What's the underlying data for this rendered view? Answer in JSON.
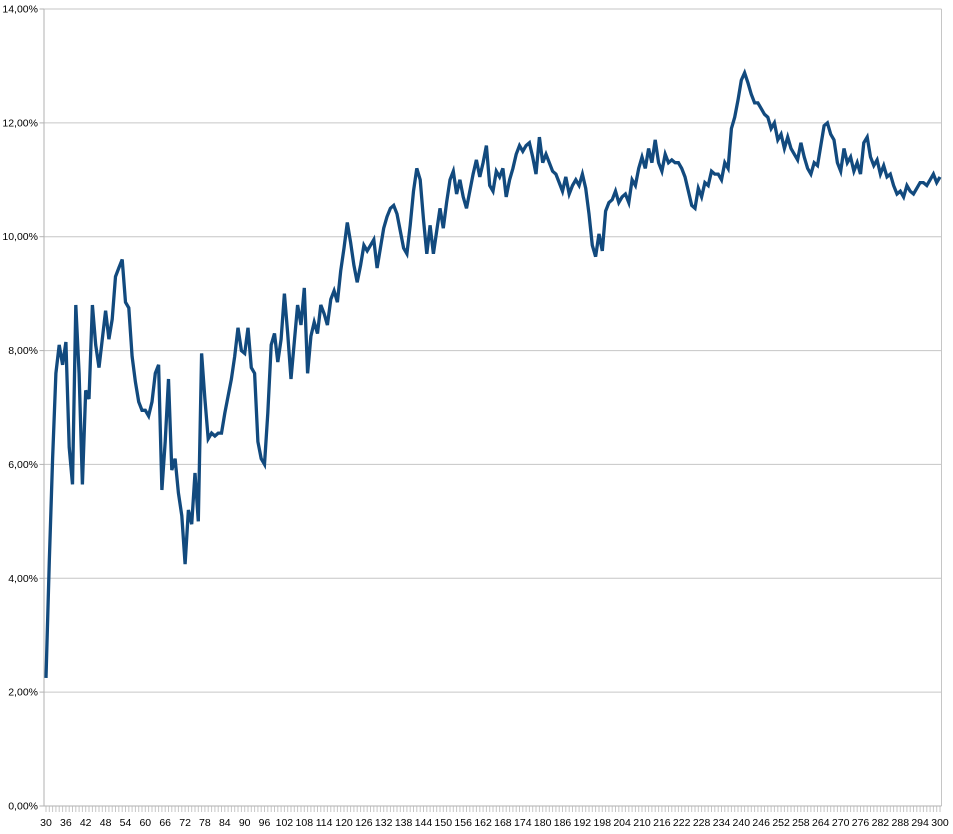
{
  "chart_data": {
    "type": "line",
    "title": "",
    "xlabel": "",
    "ylabel": "",
    "legend": "none",
    "grid": true,
    "background_color": "#ffffff",
    "line_color": "#124a7e",
    "gridline_color": "#c6c6c6",
    "axis_color": "#b2b2b2",
    "tick_color": "#c6c6c6",
    "label_color": "#000000",
    "ylim": [
      0,
      14
    ],
    "y_tick_step_percent": 2,
    "y_tick_labels": [
      "0,00%",
      "2,00%",
      "4,00%",
      "6,00%",
      "8,00%",
      "10,00%",
      "12,00%",
      "14,00%"
    ],
    "x_start": 30,
    "x_end": 300,
    "x_step": 1,
    "x_label_step": 6,
    "x_tick_labels": [
      "30",
      "36",
      "42",
      "48",
      "54",
      "60",
      "66",
      "72",
      "78",
      "84",
      "90",
      "96",
      "102",
      "108",
      "114",
      "120",
      "126",
      "132",
      "138",
      "144",
      "150",
      "156",
      "162",
      "168",
      "174",
      "180",
      "186",
      "192",
      "198",
      "204",
      "210",
      "216",
      "222",
      "228",
      "234",
      "240",
      "246",
      "252",
      "258",
      "264",
      "270",
      "276",
      "282",
      "288",
      "294",
      "300"
    ],
    "values_percent": [
      2.25,
      4.3,
      6.1,
      7.6,
      8.1,
      7.75,
      8.15,
      6.3,
      5.65,
      8.8,
      7.6,
      5.65,
      7.3,
      7.15,
      8.8,
      8.1,
      7.7,
      8.2,
      8.7,
      8.2,
      8.55,
      9.3,
      9.45,
      9.6,
      8.85,
      8.75,
      7.9,
      7.45,
      7.1,
      6.95,
      6.95,
      6.85,
      7.1,
      7.6,
      7.75,
      5.55,
      6.4,
      7.5,
      5.9,
      6.1,
      5.5,
      5.1,
      4.25,
      5.2,
      4.95,
      5.85,
      5.0,
      7.95,
      7.15,
      6.45,
      6.55,
      6.5,
      6.55,
      6.55,
      6.9,
      7.2,
      7.5,
      7.9,
      8.4,
      8.0,
      7.95,
      8.4,
      7.7,
      7.6,
      6.4,
      6.1,
      6.0,
      6.9,
      8.1,
      8.3,
      7.8,
      8.2,
      9.0,
      8.3,
      7.5,
      8.15,
      8.8,
      8.45,
      9.1,
      7.6,
      8.25,
      8.5,
      8.3,
      8.8,
      8.65,
      8.45,
      8.9,
      9.05,
      8.85,
      9.4,
      9.8,
      10.25,
      9.9,
      9.5,
      9.2,
      9.5,
      9.85,
      9.75,
      9.85,
      9.95,
      9.45,
      9.8,
      10.15,
      10.35,
      10.5,
      10.55,
      10.4,
      10.1,
      9.8,
      9.7,
      10.2,
      10.8,
      11.2,
      11.0,
      10.3,
      9.7,
      10.2,
      9.7,
      10.1,
      10.5,
      10.15,
      10.6,
      11.0,
      11.15,
      10.75,
      11.0,
      10.7,
      10.5,
      10.8,
      11.1,
      11.35,
      11.05,
      11.3,
      11.6,
      10.9,
      10.8,
      11.15,
      11.05,
      11.2,
      10.7,
      11.0,
      11.2,
      11.45,
      11.6,
      11.5,
      11.6,
      11.65,
      11.4,
      11.1,
      11.75,
      11.3,
      11.45,
      11.3,
      11.15,
      11.1,
      10.95,
      10.8,
      11.05,
      10.75,
      10.9,
      11.0,
      10.9,
      11.1,
      10.85,
      10.4,
      9.85,
      9.65,
      10.05,
      9.75,
      10.45,
      10.6,
      10.65,
      10.8,
      10.6,
      10.7,
      10.75,
      10.6,
      11.0,
      10.9,
      11.2,
      11.4,
      11.2,
      11.55,
      11.3,
      11.7,
      11.3,
      11.15,
      11.45,
      11.3,
      11.35,
      11.3,
      11.3,
      11.2,
      11.05,
      10.8,
      10.55,
      10.5,
      10.85,
      10.7,
      10.95,
      10.9,
      11.15,
      11.1,
      11.1,
      11.0,
      11.3,
      11.2,
      11.9,
      12.1,
      12.4,
      12.75,
      12.88,
      12.7,
      12.5,
      12.35,
      12.35,
      12.25,
      12.15,
      12.1,
      11.9,
      12.0,
      11.7,
      11.8,
      11.55,
      11.75,
      11.55,
      11.45,
      11.35,
      11.65,
      11.4,
      11.2,
      11.1,
      11.3,
      11.25,
      11.6,
      11.95,
      12.0,
      11.8,
      11.7,
      11.3,
      11.15,
      11.55,
      11.3,
      11.4,
      11.15,
      11.3,
      11.1,
      11.65,
      11.75,
      11.4,
      11.25,
      11.35,
      11.1,
      11.25,
      11.05,
      11.1,
      10.9,
      10.75,
      10.8,
      10.7,
      10.9,
      10.8,
      10.75,
      10.85,
      10.95,
      10.95,
      10.9,
      11.0,
      11.1,
      10.95,
      11.05
    ]
  }
}
